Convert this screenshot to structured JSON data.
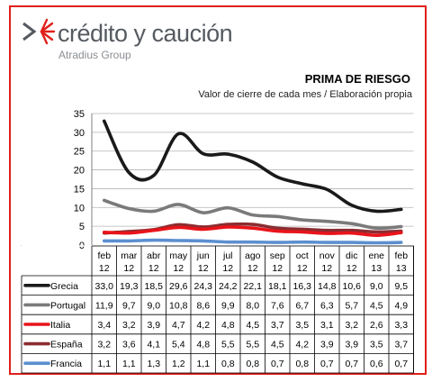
{
  "brand": {
    "name": "crédito y caución",
    "subtitle": "Atradius Group",
    "accent_color": "#e0201b",
    "text_color": "#555a60",
    "logo_icon": "double-chevron-star-icon"
  },
  "chart_data": {
    "type": "line",
    "title": "PRIMA DE RIESGO",
    "subtitle": "Valor de cierre de cada mes / Elaboración propia",
    "categories": [
      [
        "feb",
        "12"
      ],
      [
        "mar",
        "12"
      ],
      [
        "abr",
        "12"
      ],
      [
        "may",
        "12"
      ],
      [
        "jun",
        "12"
      ],
      [
        "jul",
        "12"
      ],
      [
        "ago",
        "12"
      ],
      [
        "sep",
        "12"
      ],
      [
        "oct",
        "12"
      ],
      [
        "nov",
        "12"
      ],
      [
        "dic",
        "12"
      ],
      [
        "ene",
        "13"
      ],
      [
        "feb",
        "13"
      ]
    ],
    "ylim": [
      0,
      35
    ],
    "yticks": [
      "35",
      "30",
      "25",
      "20",
      "15",
      "10",
      "5",
      "0"
    ],
    "grid": true,
    "legend": "data-table-below",
    "series": [
      {
        "name": "Grecia",
        "color": "#1a1a1a",
        "values": [
          33.0,
          19.3,
          18.5,
          29.6,
          24.3,
          24.2,
          22.1,
          18.1,
          16.3,
          14.8,
          10.6,
          9.0,
          9.5
        ],
        "labels": [
          "33,0",
          "19,3",
          "18,5",
          "29,6",
          "24,3",
          "24,2",
          "22,1",
          "18,1",
          "16,3",
          "14,8",
          "10,6",
          "9,0",
          "9,5"
        ]
      },
      {
        "name": "Portugal",
        "color": "#7a7a7a",
        "values": [
          11.9,
          9.7,
          9.0,
          10.8,
          8.6,
          9.9,
          8.0,
          7.6,
          6.7,
          6.3,
          5.7,
          4.5,
          4.9
        ],
        "labels": [
          "11,9",
          "9,7",
          "9,0",
          "10,8",
          "8,6",
          "9,9",
          "8,0",
          "7,6",
          "6,7",
          "6,3",
          "5,7",
          "4,5",
          "4,9"
        ]
      },
      {
        "name": "Italia",
        "color": "#e8141a",
        "values": [
          3.4,
          3.2,
          3.9,
          4.7,
          4.2,
          4.8,
          4.5,
          3.7,
          3.5,
          3.1,
          3.2,
          2.6,
          3.3
        ],
        "labels": [
          "3,4",
          "3,2",
          "3,9",
          "4,7",
          "4,2",
          "4,8",
          "4,5",
          "3,7",
          "3,5",
          "3,1",
          "3,2",
          "2,6",
          "3,3"
        ]
      },
      {
        "name": "España",
        "color": "#8b2d31",
        "values": [
          3.2,
          3.6,
          4.1,
          5.4,
          4.8,
          5.5,
          5.5,
          4.5,
          4.2,
          3.9,
          3.9,
          3.5,
          3.7
        ],
        "labels": [
          "3,2",
          "3,6",
          "4,1",
          "5,4",
          "4,8",
          "5,5",
          "5,5",
          "4,5",
          "4,2",
          "3,9",
          "3,9",
          "3,5",
          "3,7"
        ]
      },
      {
        "name": "Francia",
        "color": "#5b8fd0",
        "values": [
          1.1,
          1.1,
          1.3,
          1.2,
          1.1,
          0.8,
          0.8,
          0.7,
          0.8,
          0.7,
          0.7,
          0.6,
          0.7
        ],
        "labels": [
          "1,1",
          "1,1",
          "1,3",
          "1,2",
          "1,1",
          "0,8",
          "0,8",
          "0,7",
          "0,8",
          "0,7",
          "0,7",
          "0,6",
          "0,7"
        ]
      }
    ]
  }
}
